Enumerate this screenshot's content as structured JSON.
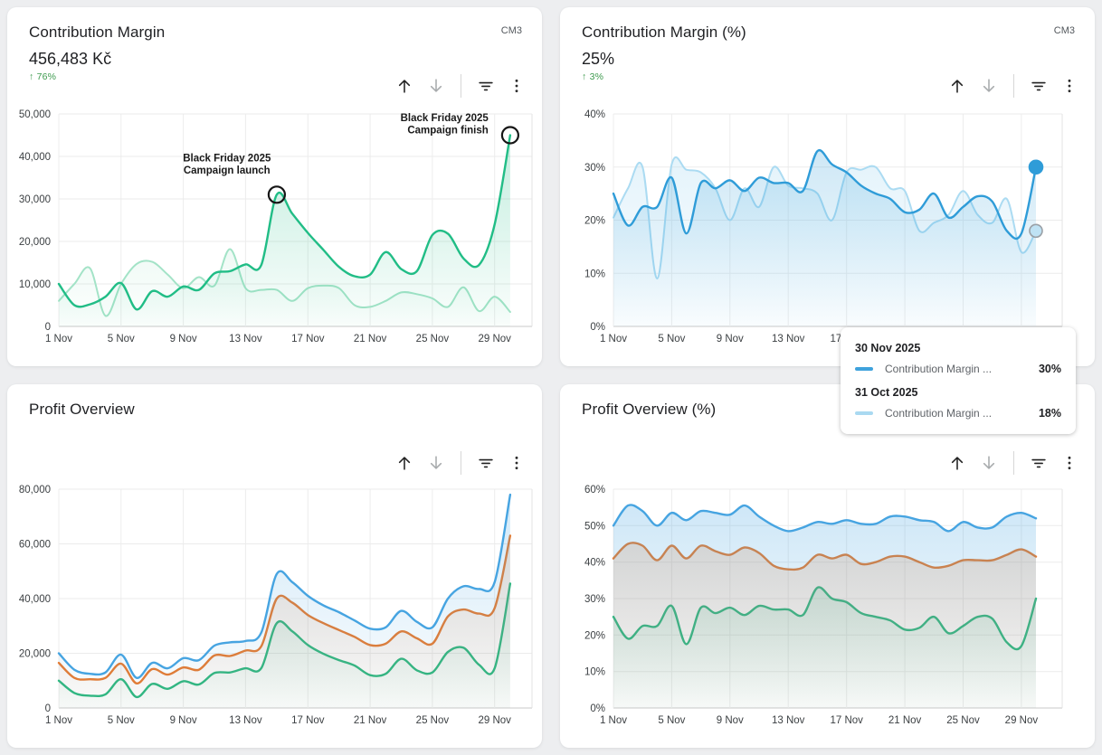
{
  "page": {
    "background": "#edeef0"
  },
  "colors": {
    "positive": "#3e9b4f",
    "grid": "#ebebeb",
    "axis_base": "#c8c8c8",
    "tick_text": "#3c4043",
    "green_current": "#21bd86",
    "green_previous": "#a3e3c7",
    "blue_current": "#2f9cd8",
    "blue_previous": "#abdbf2",
    "orange": "#e87a2e",
    "blue_profit": "#46a4e1",
    "green_profit": "#29b981"
  },
  "cards": [
    {
      "title": "Contribution Margin",
      "badge": "CM3",
      "value": "456,483 Kč",
      "change": "↑ 76%"
    },
    {
      "title": "Contribution Margin (%)",
      "badge": "CM3",
      "value": "25%",
      "change": "↑ 3%"
    },
    {
      "title": "Profit Overview",
      "badge": "",
      "value": "",
      "change": ""
    },
    {
      "title": "Profit Overview (%)",
      "badge": "",
      "value": "",
      "change": ""
    }
  ],
  "tooltip": {
    "entries": [
      {
        "date": "30 Nov 2025",
        "label": "Contribution Margin ...",
        "value": "30%",
        "swatch_color": "#3fa2dc"
      },
      {
        "date": "31 Oct 2025",
        "label": "Contribution Margin ...",
        "value": "18%",
        "swatch_color": "#a9d9f1"
      }
    ]
  },
  "chart_data": [
    {
      "type": "line",
      "title": "Contribution Margin",
      "unit": "Kč",
      "x_unit": "day of Nov 2025",
      "x_days": [
        1,
        2,
        3,
        4,
        5,
        6,
        7,
        8,
        9,
        10,
        11,
        12,
        13,
        14,
        15,
        16,
        17,
        18,
        19,
        20,
        21,
        22,
        23,
        24,
        25,
        26,
        27,
        28,
        29,
        30
      ],
      "x_tick_days": [
        1,
        5,
        9,
        13,
        17,
        21,
        25,
        29
      ],
      "x_tick_labels": [
        "1 Nov",
        "5 Nov",
        "9 Nov",
        "13 Nov",
        "17 Nov",
        "21 Nov",
        "25 Nov",
        "29 Nov"
      ],
      "ylim": [
        0,
        50000
      ],
      "y_ticks": [
        0,
        10000,
        20000,
        30000,
        40000,
        50000
      ],
      "y_tick_labels": [
        "0",
        "10,000",
        "20,000",
        "30,000",
        "40,000",
        "50,000"
      ],
      "grid": true,
      "legend": "none",
      "series": [
        {
          "name": "previous_period",
          "color": "#a3e3c7",
          "line_width": 2,
          "fill_opacity": 0.45,
          "values": [
            6000,
            10000,
            13700,
            2500,
            10000,
            14700,
            15200,
            12200,
            9000,
            11600,
            9600,
            18200,
            9000,
            8600,
            8600,
            6000,
            9000,
            9600,
            9000,
            5000,
            4600,
            6000,
            8000,
            7600,
            6600,
            4600,
            9200,
            3600,
            7000,
            3400
          ]
        },
        {
          "name": "current_period",
          "color": "#21bd86",
          "line_width": 2.4,
          "fill_opacity": 0.3,
          "values": [
            10000,
            5000,
            5200,
            7000,
            10200,
            4000,
            8300,
            7000,
            9400,
            8600,
            12500,
            13000,
            14600,
            14400,
            31000,
            26500,
            22000,
            18000,
            14000,
            11800,
            12200,
            17500,
            13500,
            13000,
            21500,
            21800,
            16000,
            14500,
            24000,
            45000
          ]
        }
      ],
      "annotations": [
        {
          "text_lines": [
            "Black Friday 2025",
            "Campaign launch"
          ],
          "day": 15,
          "value": 31000,
          "label_day": 11.8,
          "label_value": 38800,
          "anchor": "middle"
        },
        {
          "text_lines": [
            "Black Friday 2025",
            "Campaign finish"
          ],
          "day": 30,
          "value": 45000,
          "label_day": 28.6,
          "label_value": 48300,
          "anchor": "end"
        }
      ]
    },
    {
      "type": "line",
      "title": "Contribution Margin (%)",
      "unit": "%",
      "x_unit": "day of Nov 2025",
      "x_days": [
        1,
        2,
        3,
        4,
        5,
        6,
        7,
        8,
        9,
        10,
        11,
        12,
        13,
        14,
        15,
        16,
        17,
        18,
        19,
        20,
        21,
        22,
        23,
        24,
        25,
        26,
        27,
        28,
        29,
        30
      ],
      "x_tick_days": [
        1,
        5,
        9,
        13,
        17,
        21,
        25,
        29
      ],
      "x_tick_labels": [
        "1 Nov",
        "5 Nov",
        "9 Nov",
        "13 Nov",
        "17 Nov",
        "21 Nov",
        "25 Nov",
        "29 Nov"
      ],
      "ylim": [
        0,
        40
      ],
      "y_ticks": [
        0,
        10,
        20,
        30,
        40
      ],
      "y_tick_labels": [
        "0%",
        "10%",
        "20%",
        "30%",
        "40%"
      ],
      "grid": true,
      "legend": "none",
      "series": [
        {
          "name": "previous_period",
          "color": "#abdbf2",
          "line_width": 2,
          "fill_opacity": 0.4,
          "values": [
            20.5,
            26,
            30,
            9,
            30.5,
            29.5,
            29,
            26,
            20,
            26,
            22.5,
            30,
            26.5,
            26,
            25,
            20,
            29,
            29.5,
            30,
            26,
            25.5,
            18,
            19.5,
            21,
            25.5,
            21,
            19.5,
            24,
            14,
            18
          ]
        },
        {
          "name": "current_period",
          "color": "#2f9cd8",
          "line_width": 2.4,
          "fill_opacity": 0.28,
          "values": [
            25,
            19,
            22.5,
            22.5,
            28,
            17.5,
            27,
            26,
            27.5,
            25.5,
            28,
            27,
            27,
            25.5,
            33,
            30.5,
            29,
            26.5,
            25,
            24,
            21.5,
            22,
            25,
            20.5,
            22.5,
            24.5,
            23.5,
            18,
            17.5,
            30
          ]
        }
      ],
      "end_dots": [
        {
          "day": 30,
          "value": 30,
          "fill": "#2f9cd8",
          "stroke": "#2f9cd8",
          "r": 7.5
        },
        {
          "day": 30,
          "value": 18,
          "fill": "#bfe2f4",
          "stroke": "#9aa0a6",
          "r": 7
        }
      ]
    },
    {
      "type": "line",
      "title": "Profit Overview",
      "unit": "Kč",
      "x_unit": "day of Nov 2025",
      "x_days": [
        1,
        2,
        3,
        4,
        5,
        6,
        7,
        8,
        9,
        10,
        11,
        12,
        13,
        14,
        15,
        16,
        17,
        18,
        19,
        20,
        21,
        22,
        23,
        24,
        25,
        26,
        27,
        28,
        29,
        30
      ],
      "x_tick_days": [
        1,
        5,
        9,
        13,
        17,
        21,
        25,
        29
      ],
      "x_tick_labels": [
        "1 Nov",
        "5 Nov",
        "9 Nov",
        "13 Nov",
        "17 Nov",
        "21 Nov",
        "25 Nov",
        "29 Nov"
      ],
      "ylim": [
        0,
        80000
      ],
      "y_ticks": [
        0,
        20000,
        40000,
        60000,
        80000
      ],
      "y_tick_labels": [
        "0",
        "20,000",
        "40,000",
        "60,000",
        "80,000"
      ],
      "grid": true,
      "legend": "none",
      "series": [
        {
          "name": "series_green",
          "color": "#29b981",
          "line_width": 2.4,
          "fill_opacity": 0.25,
          "values": [
            10000,
            5500,
            4500,
            5000,
            10500,
            4000,
            8800,
            7000,
            9800,
            8600,
            12800,
            13000,
            14500,
            14500,
            31000,
            28000,
            23000,
            19800,
            17500,
            15500,
            12000,
            12500,
            18000,
            13800,
            13000,
            20500,
            22000,
            15800,
            14500,
            45500
          ]
        },
        {
          "name": "series_orange",
          "color": "#e87a2e",
          "line_width": 2.4,
          "fill_opacity": 0.25,
          "values": [
            16500,
            11000,
            10500,
            11000,
            16200,
            9000,
            14200,
            12200,
            14800,
            14000,
            19200,
            19000,
            21000,
            22500,
            40000,
            38500,
            34000,
            31000,
            28500,
            26000,
            23000,
            23500,
            28000,
            25500,
            23500,
            33500,
            36000,
            34500,
            36500,
            63000
          ]
        },
        {
          "name": "series_blue",
          "color": "#46a4e1",
          "line_width": 2.4,
          "fill_opacity": 0.25,
          "values": [
            20000,
            14000,
            12500,
            13000,
            19500,
            11000,
            16500,
            14500,
            18200,
            17500,
            22800,
            24000,
            24500,
            27500,
            49000,
            46000,
            41000,
            37500,
            35000,
            32000,
            29000,
            29500,
            35500,
            31500,
            29500,
            40000,
            44500,
            43500,
            46000,
            78000
          ]
        }
      ]
    },
    {
      "type": "line",
      "title": "Profit Overview (%)",
      "unit": "%",
      "x_unit": "day of Nov 2025",
      "x_days": [
        1,
        2,
        3,
        4,
        5,
        6,
        7,
        8,
        9,
        10,
        11,
        12,
        13,
        14,
        15,
        16,
        17,
        18,
        19,
        20,
        21,
        22,
        23,
        24,
        25,
        26,
        27,
        28,
        29,
        30
      ],
      "x_tick_days": [
        1,
        5,
        9,
        13,
        17,
        21,
        25,
        29
      ],
      "x_tick_labels": [
        "1 Nov",
        "5 Nov",
        "9 Nov",
        "13 Nov",
        "17 Nov",
        "21 Nov",
        "25 Nov",
        "29 Nov"
      ],
      "ylim": [
        0,
        60
      ],
      "y_ticks": [
        0,
        10,
        20,
        30,
        40,
        50,
        60
      ],
      "y_tick_labels": [
        "0%",
        "10%",
        "20%",
        "30%",
        "40%",
        "50%",
        "60%"
      ],
      "grid": true,
      "legend": "none",
      "series": [
        {
          "name": "series_green",
          "color": "#29b981",
          "line_width": 2.4,
          "fill_opacity": 0.28,
          "values": [
            25,
            19,
            22.5,
            22.5,
            28,
            17.5,
            27.5,
            26,
            27.5,
            25.5,
            28,
            27,
            27,
            25.5,
            33,
            30,
            29,
            26,
            25,
            24,
            21.5,
            22,
            25,
            20.5,
            22.5,
            25,
            24.5,
            18,
            17,
            30
          ]
        },
        {
          "name": "series_orange",
          "color": "#e87a2e",
          "line_width": 2.4,
          "fill_opacity": 0.28,
          "values": [
            41,
            45,
            44.5,
            40.5,
            44.5,
            41,
            44.5,
            43,
            42,
            44,
            42.5,
            39,
            38,
            38.5,
            42,
            41,
            42,
            39.5,
            40,
            41.5,
            41.5,
            40,
            38.5,
            39,
            40.5,
            40.5,
            40.5,
            42,
            43.5,
            41.5
          ]
        },
        {
          "name": "series_blue",
          "color": "#46a4e1",
          "line_width": 2.4,
          "fill_opacity": 0.28,
          "values": [
            50,
            55.5,
            54,
            50,
            53.5,
            51.5,
            54,
            53.5,
            53,
            55.5,
            52.5,
            50,
            48.5,
            49.5,
            51,
            50.5,
            51.5,
            50.5,
            50.5,
            52.5,
            52.5,
            51.5,
            51,
            48.5,
            51,
            49.5,
            49.5,
            52.5,
            53.5,
            52
          ]
        }
      ]
    }
  ]
}
